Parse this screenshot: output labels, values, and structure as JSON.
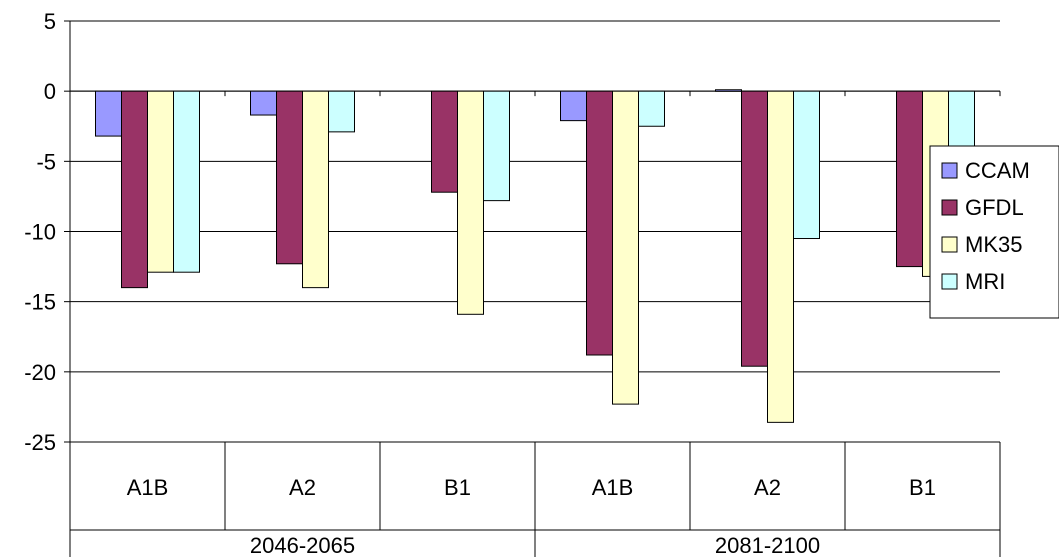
{
  "chart_data": {
    "type": "bar",
    "title": "",
    "xlabel": "",
    "ylabel": "",
    "ylim": [
      -25,
      5
    ],
    "yticks": [
      5,
      0,
      -5,
      -10,
      -15,
      -20,
      -25
    ],
    "grid": true,
    "legend_position": "right",
    "groups": [
      {
        "label": "2046-2065",
        "categories": [
          "A1B",
          "A2",
          "B1"
        ]
      },
      {
        "label": "2081-2100",
        "categories": [
          "A1B",
          "A2",
          "B1"
        ]
      }
    ],
    "categories": [
      "A1B",
      "A2",
      "B1",
      "A1B",
      "A2",
      "B1"
    ],
    "series": [
      {
        "name": "CCAM",
        "color": "#9999ff",
        "values": [
          -3.2,
          -1.7,
          null,
          -2.1,
          0.1,
          null
        ]
      },
      {
        "name": "GFDL",
        "color": "#993366",
        "values": [
          -14.0,
          -12.3,
          -7.2,
          -18.8,
          -19.6,
          -12.5
        ]
      },
      {
        "name": "MK35",
        "color": "#ffffcc",
        "values": [
          -12.9,
          -14.0,
          -15.9,
          -22.3,
          -23.6,
          -13.2
        ]
      },
      {
        "name": "MRI",
        "color": "#ccffff",
        "values": [
          -12.9,
          -2.9,
          -7.8,
          -2.5,
          -10.5,
          -4.0
        ]
      }
    ]
  }
}
